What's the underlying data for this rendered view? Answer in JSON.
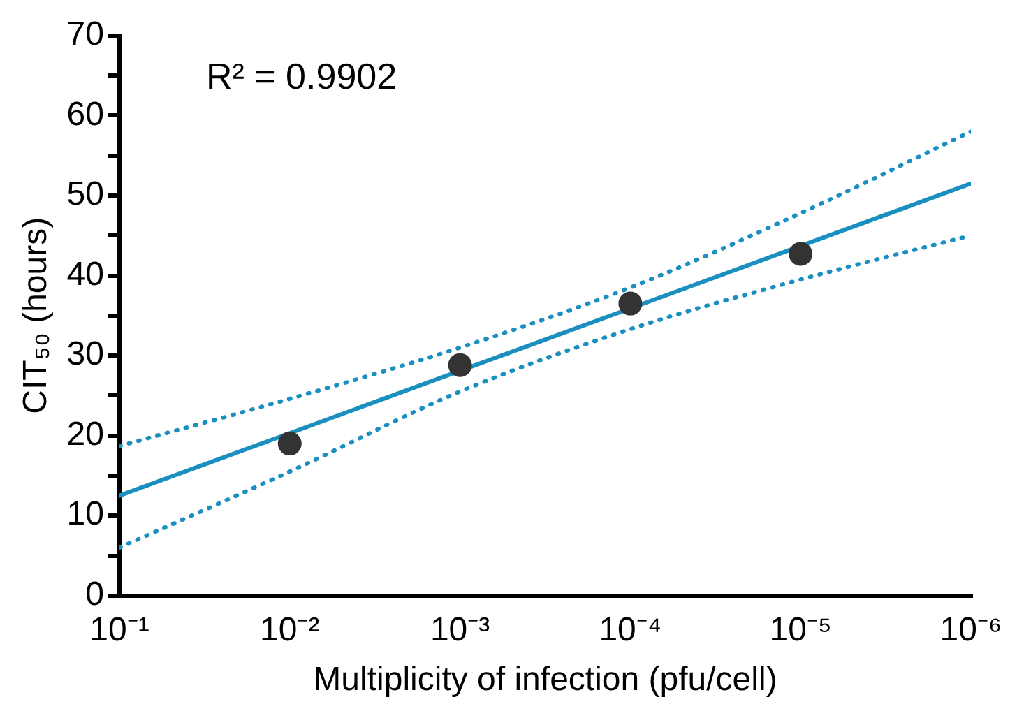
{
  "chart_data": {
    "type": "scatter",
    "xlabel": "Multiplicity of infection (pfu/cell)",
    "ylabel": "CIT₅₀ (hours)",
    "annotations": [
      "R² = 0.9902"
    ],
    "log": "x",
    "xlim": [
      0.1,
      1e-06
    ],
    "xticks": [
      {
        "value": 0.1,
        "label": "10⁻¹"
      },
      {
        "value": 0.01,
        "label": "10⁻²"
      },
      {
        "value": 0.001,
        "label": "10⁻³"
      },
      {
        "value": 0.0001,
        "label": "10⁻⁴"
      },
      {
        "value": 1e-05,
        "label": "10⁻⁵"
      },
      {
        "value": 1e-06,
        "label": "10⁻⁶"
      }
    ],
    "ylim": [
      0,
      70
    ],
    "yticks": [
      0,
      {
        "value": 5,
        "label": null
      },
      10,
      {
        "value": 15,
        "label": null
      },
      20,
      {
        "value": 25,
        "label": null
      },
      30,
      {
        "value": 35,
        "label": null
      },
      40,
      {
        "value": 45,
        "label": null
      },
      50,
      {
        "value": 55,
        "label": null
      },
      60,
      {
        "value": 65,
        "label": null
      },
      70
    ],
    "grid": false,
    "legend": false,
    "marker": "circle",
    "series": [
      {
        "type": "scatter",
        "color": "#333333",
        "x": [
          0.01,
          0.001,
          0.0001,
          1e-05
        ],
        "values": [
          19,
          28.8,
          36.5,
          42.7
        ]
      },
      {
        "type": "line",
        "color": "#1a8fc0",
        "line_style": "solid",
        "marker": "none",
        "x": [
          0.1,
          0.01,
          0.001,
          0.0001,
          1e-05,
          1e-06
        ],
        "values": [
          12.5,
          20.3,
          null,
          35.9,
          43.7,
          51.5
        ]
      },
      {
        "type": "line",
        "color": "#1a8fc0",
        "line_style": "dotted",
        "marker": "none",
        "x": [
          0.1,
          0.01,
          0.001,
          0.0001,
          1e-05,
          1e-06
        ],
        "values": [
          6,
          15.5,
          25.5,
          33.3,
          39.5,
          45
        ]
      },
      {
        "type": "line",
        "color": "#1a8fc0",
        "line_style": "dotted",
        "marker": "none",
        "x": [
          0.1,
          0.01,
          0.001,
          0.0001,
          1e-05,
          1e-06
        ],
        "values": [
          18.7,
          24.6,
          31,
          38.5,
          47.8,
          58
        ]
      }
    ]
  }
}
